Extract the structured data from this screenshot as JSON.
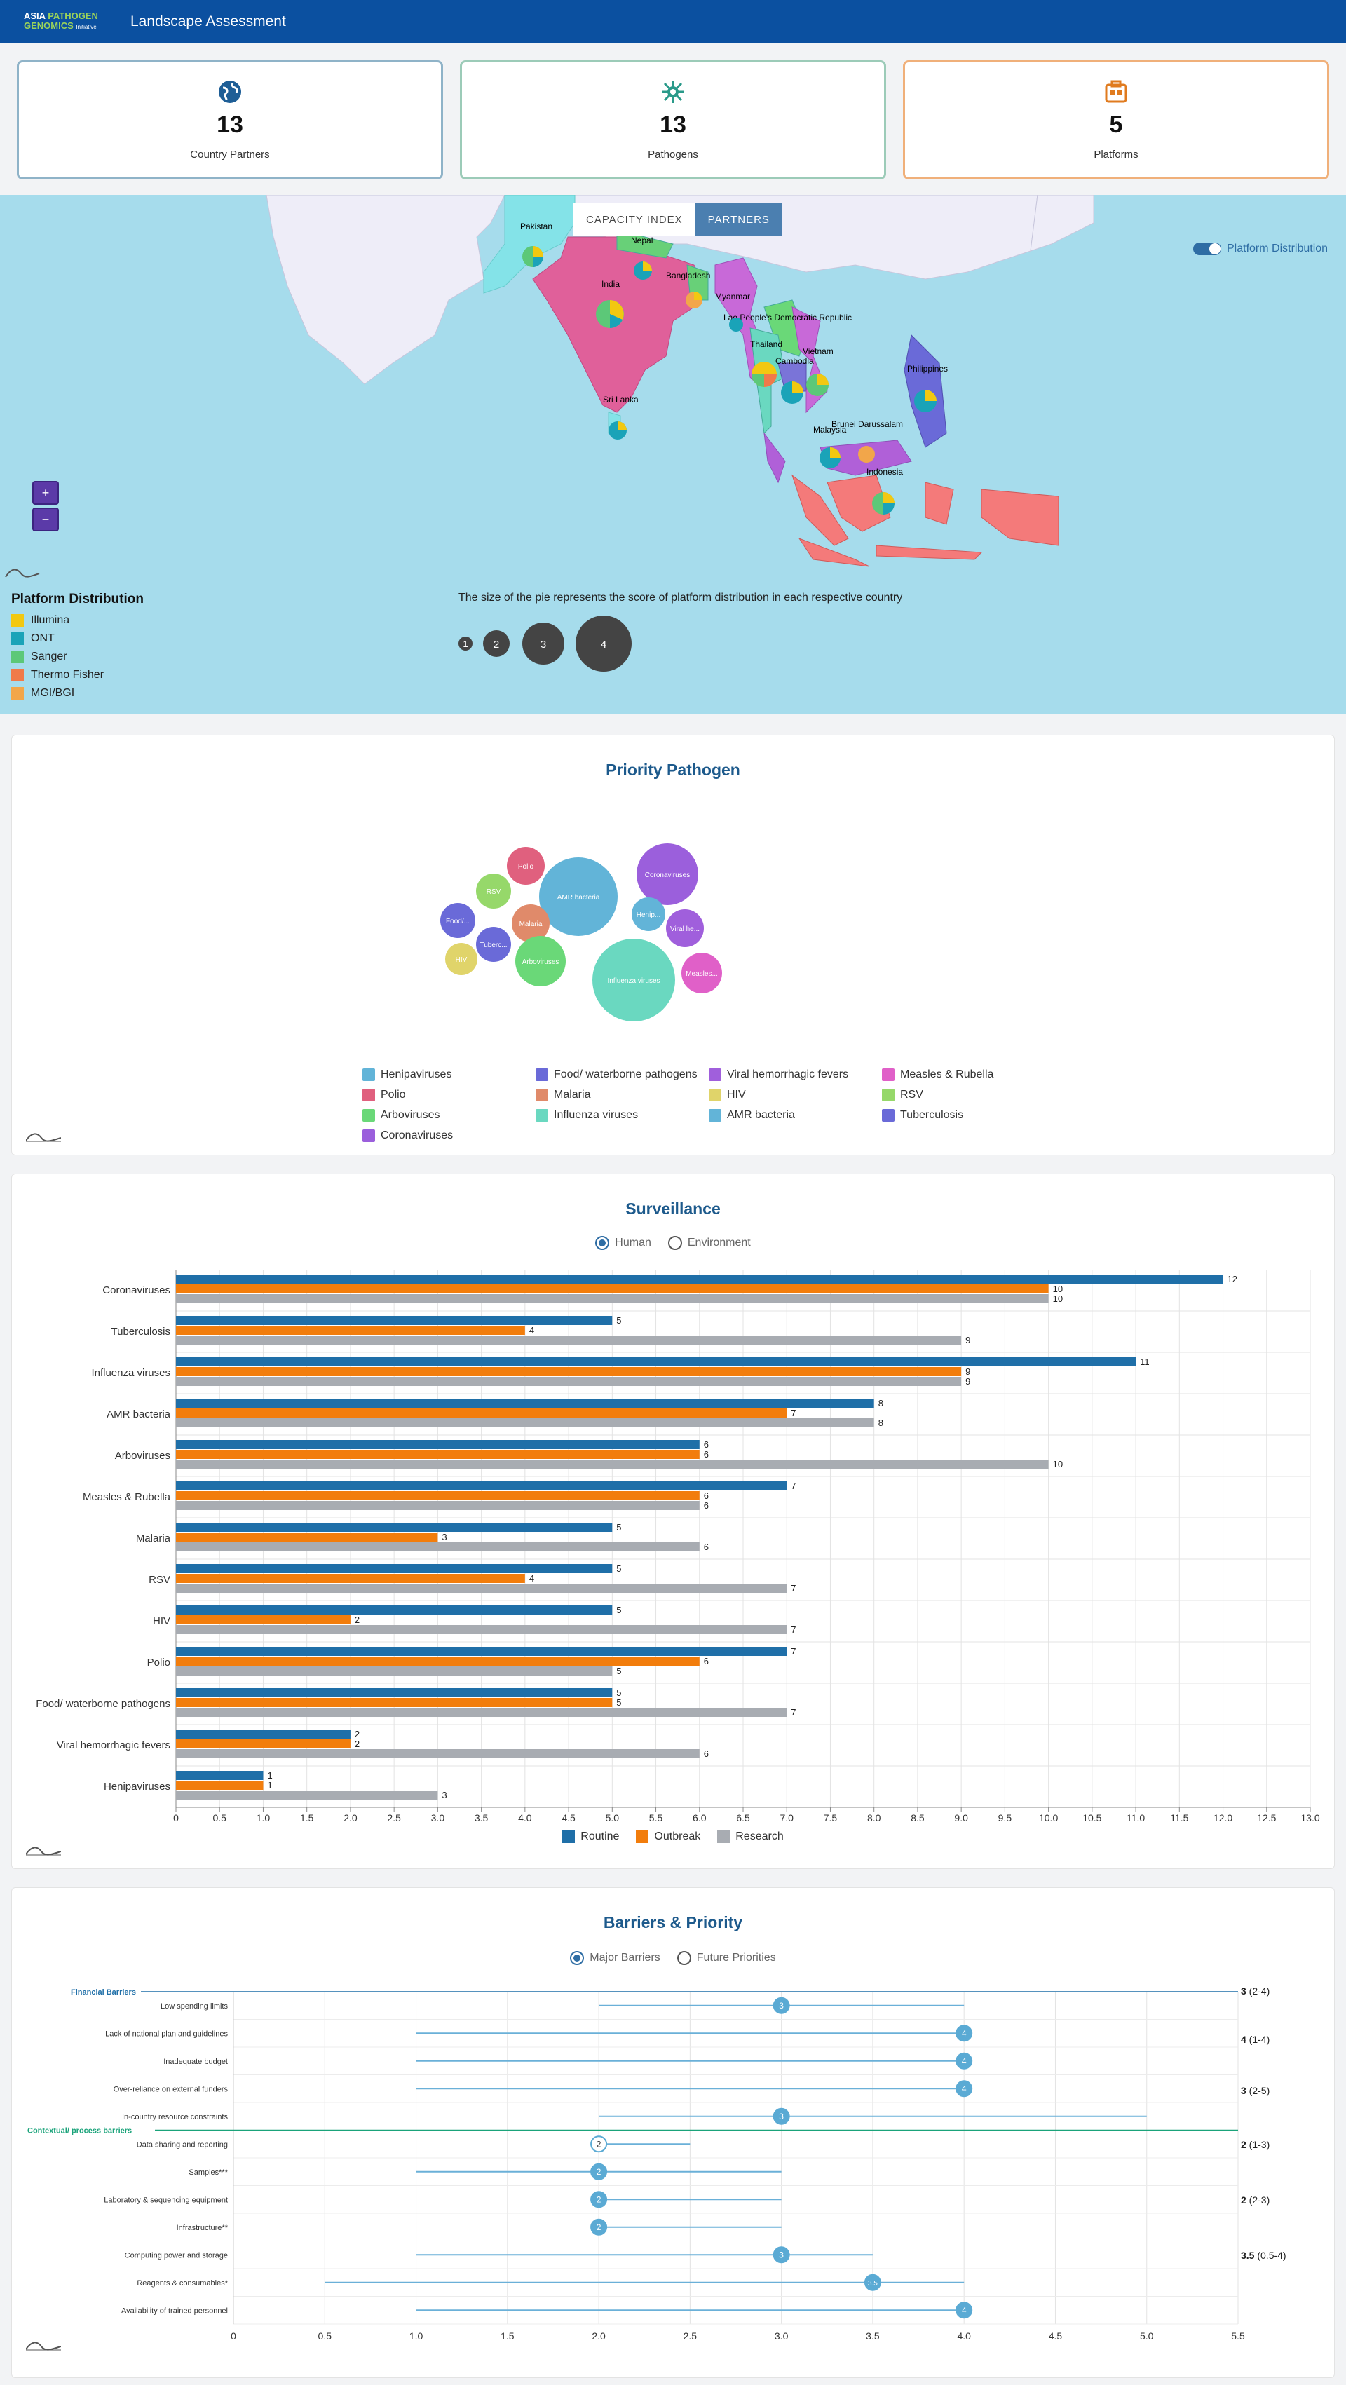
{
  "header": {
    "logo_line1_a": "ASIA ",
    "logo_line1_b": "PATHOGEN",
    "logo_line2_a": "GENOMICS ",
    "logo_line2_b": "Initiative",
    "title": "Landscape Assessment"
  },
  "cards": [
    {
      "icon": "globe-icon",
      "value": "13",
      "label": "Country Partners",
      "border": "#8fb3c8",
      "icon_color": "#1e5e96"
    },
    {
      "icon": "virus-icon",
      "value": "13",
      "label": "Pathogens",
      "border": "#9ccbb8",
      "icon_color": "#2a9a8a"
    },
    {
      "icon": "building-icon",
      "value": "5",
      "label": "Platforms",
      "border": "#f0b07a",
      "icon_color": "#e07b1f"
    }
  ],
  "map": {
    "tabs": {
      "capacity": "CAPACITY INDEX",
      "partners": "PARTNERS"
    },
    "toggle_label": "Platform Distribution",
    "zoom_in": "+",
    "zoom_out": "−",
    "countries": [
      {
        "name": "Pakistan"
      },
      {
        "name": "Nepal"
      },
      {
        "name": "India"
      },
      {
        "name": "Bangladesh"
      },
      {
        "name": "Myanmar"
      },
      {
        "name": "Lao People's Democratic Republic"
      },
      {
        "name": "Thailand"
      },
      {
        "name": "Vietnam"
      },
      {
        "name": "Cambodia"
      },
      {
        "name": "Philippines"
      },
      {
        "name": "Sri Lanka"
      },
      {
        "name": "Brunei Darussalam"
      },
      {
        "name": "Malaysia"
      },
      {
        "name": "Indonesia"
      }
    ],
    "legend_title": "Platform Distribution",
    "legend": [
      {
        "label": "Illumina",
        "color": "#f2c811"
      },
      {
        "label": "ONT",
        "color": "#1aa3b8"
      },
      {
        "label": "Sanger",
        "color": "#5cc878"
      },
      {
        "label": "Thermo Fisher",
        "color": "#f07a4a"
      },
      {
        "label": "MGI/BGI",
        "color": "#f2a64a"
      }
    ],
    "size_note": "The size of the pie represents the score of platform distribution in each respective country",
    "size_levels": [
      "1",
      "2",
      "3",
      "4"
    ]
  },
  "priority": {
    "title": "Priority Pathogen",
    "bubbles": [
      {
        "label": "AMR bacteria",
        "color": "#62b4d8"
      },
      {
        "label": "Coronaviruses",
        "color": "#9b5fdc"
      },
      {
        "label": "Polio",
        "color": "#e0607e"
      },
      {
        "label": "RSV",
        "color": "#96d86a"
      },
      {
        "label": "Food/...",
        "color": "#6a6ad8"
      },
      {
        "label": "Malaria",
        "color": "#e08a6a"
      },
      {
        "label": "Henip...",
        "color": "#62b4d8"
      },
      {
        "label": "Viral he...",
        "color": "#a05fdc"
      },
      {
        "label": "Tuberc...",
        "color": "#6a6ad8"
      },
      {
        "label": "HIV",
        "color": "#e0d46a"
      },
      {
        "label": "Arboviruses",
        "color": "#6ad878"
      },
      {
        "label": "Influenza viruses",
        "color": "#6ad8c0"
      },
      {
        "label": "Measles...",
        "color": "#e060c8"
      }
    ],
    "legend": [
      {
        "label": "Henipaviruses",
        "color": "#62b4d8"
      },
      {
        "label": "Food/ waterborne pathogens",
        "color": "#6a6ad8"
      },
      {
        "label": "Viral hemorrhagic fevers",
        "color": "#a05fdc"
      },
      {
        "label": "Measles & Rubella",
        "color": "#e060c8"
      },
      {
        "label": "Polio",
        "color": "#e0607e"
      },
      {
        "label": "Malaria",
        "color": "#e08a6a"
      },
      {
        "label": "HIV",
        "color": "#e0d46a"
      },
      {
        "label": "RSV",
        "color": "#96d86a"
      },
      {
        "label": "Arboviruses",
        "color": "#6ad878"
      },
      {
        "label": "Influenza viruses",
        "color": "#6ad8c0"
      },
      {
        "label": "AMR bacteria",
        "color": "#62b4d8"
      },
      {
        "label": "Tuberculosis",
        "color": "#6a6ad8"
      },
      {
        "label": "Coronaviruses",
        "color": "#9b5fdc"
      }
    ]
  },
  "surveillance": {
    "title": "Surveillance",
    "radios": [
      {
        "label": "Human",
        "checked": true
      },
      {
        "label": "Environment",
        "checked": false
      }
    ],
    "chart_data": {
      "type": "bar",
      "orientation": "horizontal",
      "categories": [
        "Coronaviruses",
        "Tuberculosis",
        "Influenza viruses",
        "AMR bacteria",
        "Arboviruses",
        "Measles & Rubella",
        "Malaria",
        "RSV",
        "HIV",
        "Polio",
        "Food/ waterborne pathogens",
        "Viral hemorrhagic fevers",
        "Henipaviruses"
      ],
      "series": [
        {
          "name": "Routine",
          "color": "#1f6fa8",
          "values": [
            12,
            5,
            11,
            8,
            6,
            7,
            5,
            5,
            5,
            7,
            5,
            2,
            1
          ]
        },
        {
          "name": "Outbreak",
          "color": "#f27d0c",
          "values": [
            10,
            4,
            9,
            7,
            6,
            6,
            3,
            4,
            2,
            6,
            5,
            2,
            1
          ]
        },
        {
          "name": "Research",
          "color": "#a8acb2",
          "values": [
            10,
            9,
            9,
            8,
            10,
            6,
            6,
            7,
            7,
            5,
            7,
            6,
            3
          ]
        }
      ],
      "xlim": [
        0,
        13
      ],
      "xticks": [
        "0",
        "0.5",
        "1.0",
        "1.5",
        "2.0",
        "2.5",
        "3.0",
        "3.5",
        "4.0",
        "4.5",
        "5.0",
        "5.5",
        "6.0",
        "6.5",
        "7.0",
        "7.5",
        "8.0",
        "8.5",
        "9.0",
        "9.5",
        "10.0",
        "10.5",
        "11.0",
        "11.5",
        "12.0",
        "12.5",
        "13.0"
      ],
      "grid": true,
      "legend": "bottom"
    }
  },
  "barriers": {
    "title": "Barriers & Priority",
    "radios": [
      {
        "label": "Major Barriers",
        "checked": true
      },
      {
        "label": "Future Priorities",
        "checked": false
      }
    ],
    "chart_data": {
      "type": "scatter",
      "style": "dot-with-range",
      "groups": [
        {
          "name": "Financial Barriers",
          "color": "#1f6fa8"
        },
        {
          "name": "Contextual/ process barriers",
          "color": "#1aa37a"
        }
      ],
      "rows": [
        {
          "label": "Low spending limits",
          "group": 0,
          "value": 3,
          "min": 2,
          "max": 4
        },
        {
          "label": "Lack of national plan and guidelines",
          "group": 0,
          "value": 4,
          "min": 1,
          "max": 4
        },
        {
          "label": "Inadequate budget",
          "group": 0,
          "value": 4,
          "min": 1,
          "max": 4
        },
        {
          "label": "Over-reliance on external funders",
          "group": 0,
          "value": 4,
          "min": 1,
          "max": 4
        },
        {
          "label": "In-country resource constraints",
          "group": 0,
          "value": 3,
          "min": 2,
          "max": 5
        },
        {
          "label": "Data sharing and reporting",
          "group": 1,
          "value": 2,
          "min": 2,
          "max": 2.5,
          "hollow": true
        },
        {
          "label": "Samples***",
          "group": 1,
          "value": 2,
          "min": 1,
          "max": 3
        },
        {
          "label": "Laboratory & sequencing equipment",
          "group": 1,
          "value": 2,
          "min": 2,
          "max": 3
        },
        {
          "label": "Infrastructure**",
          "group": 1,
          "value": 2,
          "min": 2,
          "max": 3
        },
        {
          "label": "Computing power and storage",
          "group": 1,
          "value": 3,
          "min": 1,
          "max": 3.5
        },
        {
          "label": "Reagents & consumables*",
          "group": 1,
          "value": 3.5,
          "min": 0.5,
          "max": 4
        },
        {
          "label": "Availability of trained personnel",
          "group": 1,
          "value": 4,
          "min": 1,
          "max": 4
        }
      ],
      "point_labels": [
        "3",
        "4",
        "4",
        "4",
        "3",
        "2",
        "2",
        "2",
        "2",
        "3",
        "3.5",
        "4"
      ],
      "summaries": [
        {
          "bold": "3",
          "range": " (2-4)"
        },
        {
          "bold": "4",
          "range": " (1-4)"
        },
        {
          "bold": "3",
          "range": " (2-5)"
        },
        {
          "bold": "2",
          "range": " (1-3)"
        },
        {
          "bold": "2",
          "range": " (2-3)"
        },
        {
          "bold": "3.5",
          "range": " (0.5-4)"
        }
      ],
      "xlim": [
        0,
        5.5
      ],
      "xticks": [
        "0",
        "0.5",
        "1.0",
        "1.5",
        "2.0",
        "2.5",
        "3.0",
        "3.5",
        "4.0",
        "4.5",
        "5.0",
        "5.5"
      ],
      "grid": true
    }
  }
}
